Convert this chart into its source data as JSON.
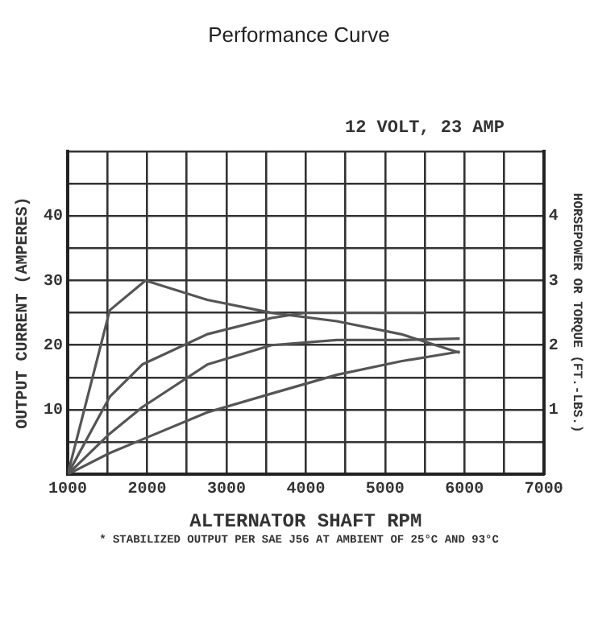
{
  "chart_data": {
    "type": "line",
    "title": "Performance Curve",
    "xlabel": "ALTERNATOR SHAFT RPM",
    "ylabel": "OUTPUT CURRENT (AMPERES)",
    "y2label": "HORSEPOWER OR TORQUE (FT.-LBS.)",
    "annotations": [
      "12 VOLT, 23 AMP",
      "* STABILIZED OUTPUT PER SAE J56 AT AMBIENT OF 25°C AND 93°C"
    ],
    "series": [
      {
        "color": "#555555",
        "x": [
          1000,
          1530,
          1980,
          2760,
          3570,
          4390,
          5200,
          5940
        ],
        "values": [
          0,
          25.4,
          30,
          27,
          25,
          23.7,
          21.7,
          18.8
        ]
      },
      {
        "color": "#555555",
        "x": [
          1000,
          1530,
          1940,
          2760,
          3570,
          3980,
          4800,
          5500
        ],
        "values": [
          0,
          12,
          17,
          21.7,
          24.2,
          25,
          25,
          25
        ]
      },
      {
        "color": "#555555",
        "x": [
          1000,
          1530,
          1940,
          2760,
          3570,
          4390,
          5200,
          5940
        ],
        "values": [
          0,
          6.3,
          10.4,
          17,
          20,
          20.8,
          20.8,
          21
        ]
      },
      {
        "color": "#555555",
        "x": [
          1000,
          1530,
          1940,
          2760,
          3570,
          4390,
          5200,
          5940
        ],
        "values": [
          0,
          3.3,
          5.4,
          9.6,
          12.5,
          15.4,
          17.5,
          19
        ]
      }
    ],
    "xlim": [
      1000,
      7000
    ],
    "xticks": [
      1000,
      {
        "value": 1500,
        "label": null
      },
      2000,
      {
        "value": 2500,
        "label": null
      },
      3000,
      {
        "value": 3500,
        "label": null
      },
      4000,
      {
        "value": 4500,
        "label": null
      },
      5000,
      {
        "value": 5500,
        "label": null
      },
      6000,
      {
        "value": 6500,
        "label": null
      },
      7000
    ],
    "ylim": [
      0,
      50
    ],
    "yticks": [
      {
        "value": 0,
        "label": null
      },
      {
        "value": 5,
        "label": null
      },
      10,
      {
        "value": 15,
        "label": null
      },
      20,
      {
        "value": 25,
        "label": null
      },
      30,
      {
        "value": 35,
        "label": null
      },
      40,
      {
        "value": 45,
        "label": null
      },
      {
        "value": 50,
        "label": null
      }
    ],
    "y2lim": [
      0,
      5
    ],
    "y2ticks": [
      1,
      2,
      3,
      4
    ],
    "grid": true,
    "legend": false,
    "marker": "none",
    "line_style": "solid"
  }
}
